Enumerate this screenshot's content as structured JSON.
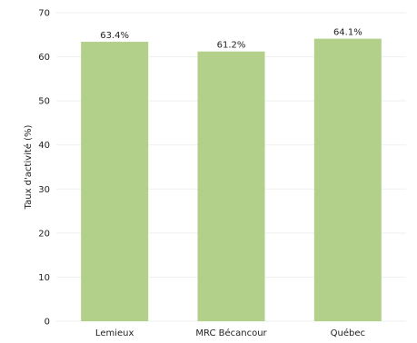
{
  "chart_data": {
    "type": "bar",
    "title": "",
    "xlabel": "",
    "ylabel": "Taux d'activité (%)",
    "categories": [
      "Lemieux",
      "MRC Bécancour",
      "Québec"
    ],
    "values": [
      63.4,
      61.2,
      64.1
    ],
    "value_labels": [
      "63.4%",
      "61.2%",
      "64.1%"
    ],
    "ylim": [
      0,
      70
    ],
    "yticks": [
      0,
      10,
      20,
      30,
      40,
      50,
      60,
      70
    ],
    "grid": true,
    "legend": "none",
    "colors": {
      "bar": "#b3d08a",
      "grid": "#eef1ee",
      "text": "#222222"
    }
  }
}
